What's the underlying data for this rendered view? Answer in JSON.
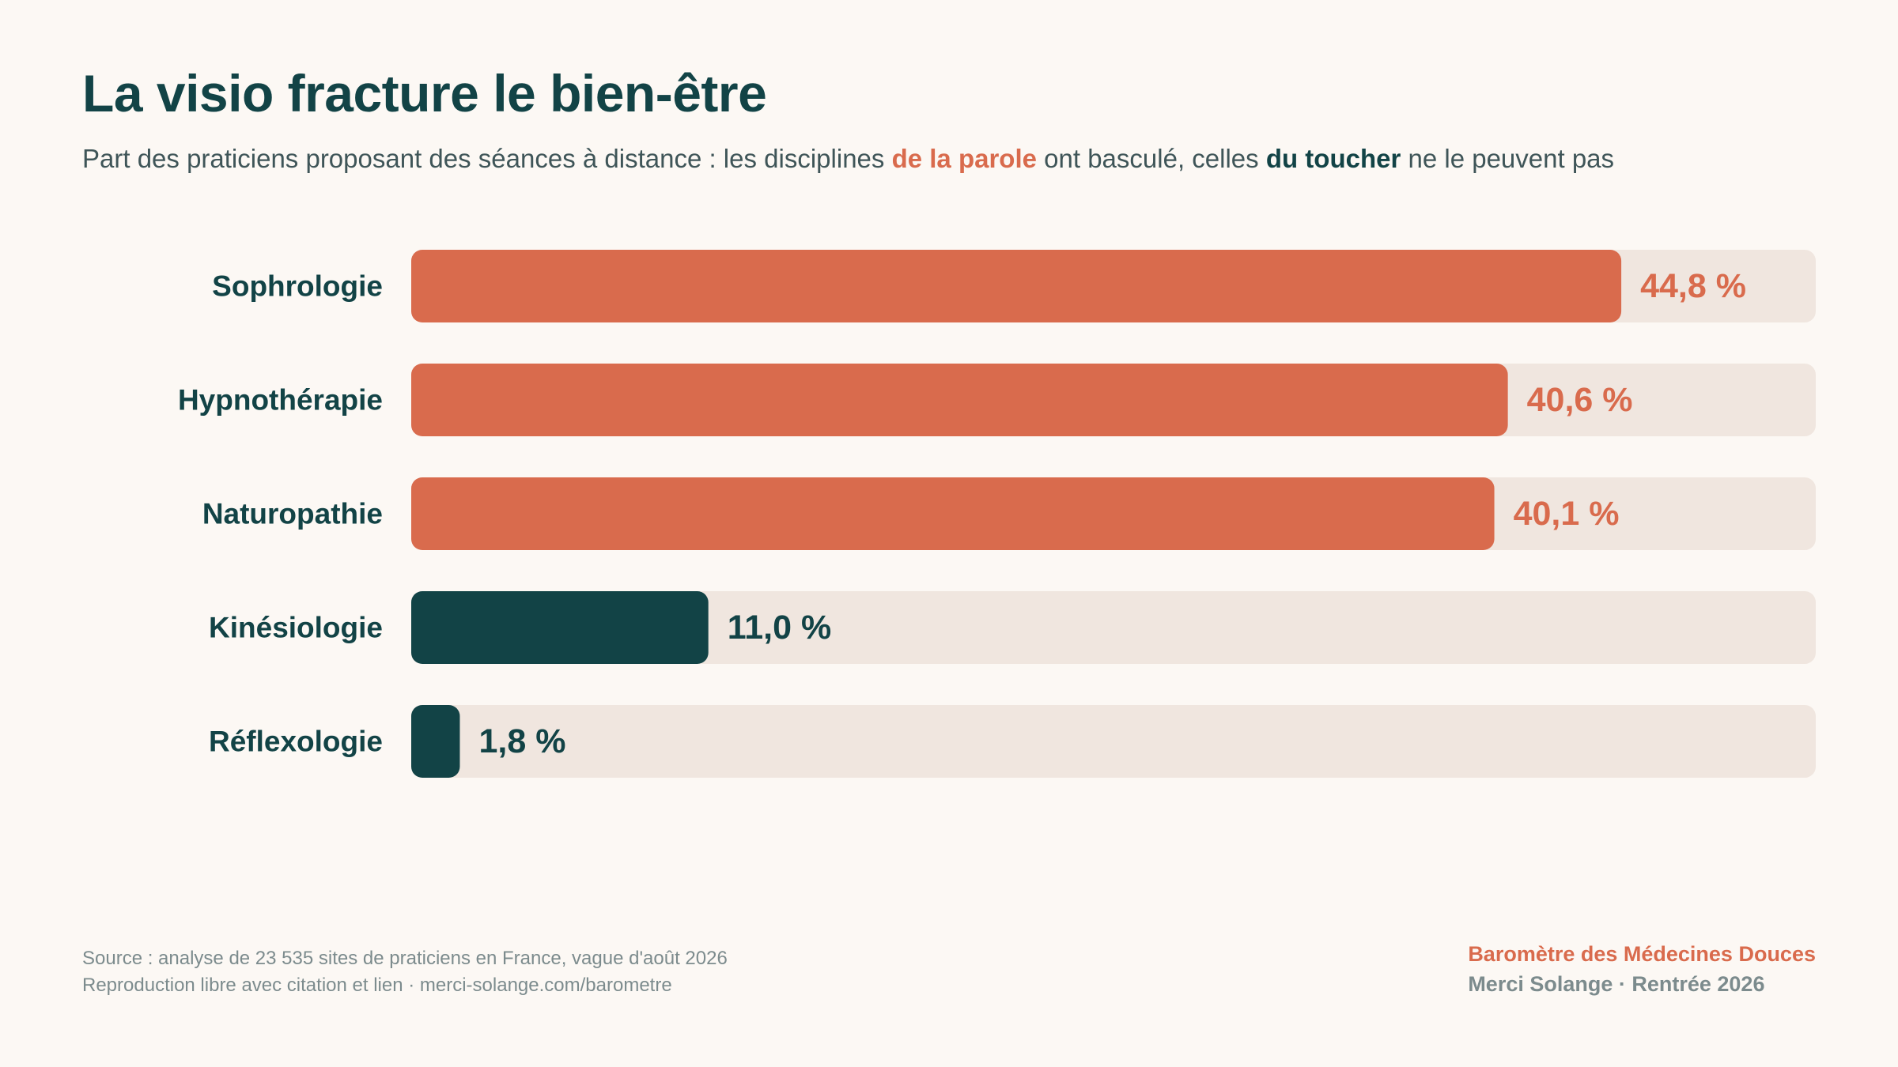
{
  "header": {
    "title": "La visio fracture le bien-être",
    "subtitle_part1": "Part des praticiens proposant des séances à distance : les disciplines ",
    "subtitle_highlight1": "de la parole",
    "subtitle_part2": " ont basculé, celles ",
    "subtitle_highlight2": "du toucher",
    "subtitle_part3": " ne le peuvent pas"
  },
  "chart_data": {
    "type": "bar",
    "orientation": "horizontal",
    "categories": [
      "Sophrologie",
      "Hypnothérapie",
      "Naturopathie",
      "Kinésiologie",
      "Réflexologie"
    ],
    "values": [
      44.8,
      40.6,
      40.1,
      11.0,
      1.8
    ],
    "value_labels": [
      "44,8 %",
      "40,6 %",
      "40,1 %",
      "11,0 %",
      "1,8 %"
    ],
    "groups": [
      "parole",
      "parole",
      "parole",
      "toucher",
      "toucher"
    ],
    "xlim": [
      0,
      52
    ],
    "grid": false,
    "legend": "none",
    "colors": {
      "parole": "#d96b4d",
      "toucher": "#124346",
      "track": "#f0e6df"
    }
  },
  "footer": {
    "source": "Source : analyse de 23 535 sites de praticiens en France, vague d'août 2026",
    "license": "Reproduction libre avec citation et lien · merci-solange.com/barometre",
    "brand": "Baromètre des Médecines Douces",
    "brand_sub": "Merci Solange · Rentrée 2026"
  }
}
